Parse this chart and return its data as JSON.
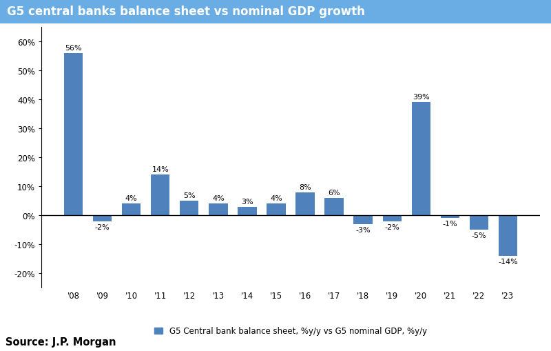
{
  "title": "G5 central banks balance sheet vs nominal GDP growth",
  "categories": [
    "'08",
    "'09",
    "'10",
    "'11",
    "'12",
    "'13",
    "'14",
    "'15",
    "'16",
    "'17",
    "'18",
    "'19",
    "'20",
    "'21",
    "'22",
    "'23"
  ],
  "values": [
    56,
    -2,
    4,
    14,
    5,
    4,
    3,
    4,
    8,
    6,
    -3,
    -2,
    39,
    -1,
    -5,
    -14
  ],
  "bar_color": "#4f81bd",
  "ylim": [
    -25,
    65
  ],
  "yticks": [
    -20,
    -10,
    0,
    10,
    20,
    30,
    40,
    50,
    60
  ],
  "legend_label": "G5 Central bank balance sheet, %y/y vs G5 nominal GDP, %y/y",
  "source_text": "Source: J.P. Morgan",
  "header_bg": "#6aade4",
  "title_color": "#ffffff",
  "title_fontsize": 12,
  "bar_label_fontsize": 8,
  "source_fontsize": 10.5,
  "legend_fontsize": 8.5,
  "tick_fontsize": 8.5
}
